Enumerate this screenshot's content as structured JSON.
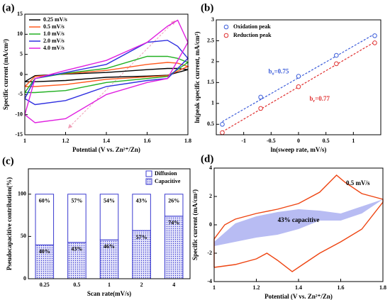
{
  "chart_data": [
    {
      "type": "line",
      "panel_label": "(a)",
      "xlabel": "Potential (V vs. Zn²⁺/Zn)",
      "ylabel": "Specific current (mA/cm²)",
      "xlim": [
        1,
        1.8
      ],
      "xticks": [
        1,
        1.2,
        1.4,
        1.6,
        1.8
      ],
      "ylim": [
        -15,
        15
      ],
      "yticks": [
        -15,
        -10,
        -5,
        0,
        5,
        10,
        15
      ],
      "x": [
        1,
        1.05,
        1.2,
        1.4,
        1.6,
        1.7,
        1.75,
        1.8,
        1.7,
        1.6,
        1.4,
        1.2,
        1.05,
        1
      ],
      "series": [
        {
          "name": "0.25 mV/s",
          "color": "#000000",
          "values": [
            -1.8,
            -0.3,
            0.1,
            0.5,
            1.2,
            1.5,
            1.5,
            1.2,
            -0.2,
            -0.4,
            -0.7,
            -1.5,
            -1.8,
            -1.8
          ]
        },
        {
          "name": "0.5 mV/s",
          "color": "#ff5a1f",
          "values": [
            -3,
            -0.5,
            0.2,
            1,
            2.5,
            3,
            2.8,
            2,
            -0.3,
            -0.6,
            -1.2,
            -2.5,
            -3,
            -3
          ]
        },
        {
          "name": "1.0 mV/s",
          "color": "#22b022",
          "values": [
            -4.5,
            -1,
            0.3,
            1.5,
            4.5,
            4.5,
            4,
            3,
            -0.5,
            -1,
            -2,
            -4,
            -4.5,
            -4.5
          ]
        },
        {
          "name": "2.0 mV/s",
          "color": "#3030e0",
          "values": [
            -6,
            -1,
            0.5,
            2.5,
            8,
            8.5,
            7,
            4,
            -1,
            -1.5,
            -3,
            -6.5,
            -7.5,
            -6
          ]
        },
        {
          "name": "4.0 mV/s",
          "color": "#e020e0",
          "values": [
            -10,
            -1,
            1,
            3.5,
            8,
            12,
            13.5,
            8,
            -1,
            -2,
            -5,
            -11,
            -12,
            -10
          ]
        }
      ]
    },
    {
      "type": "scatter",
      "panel_label": "(b)",
      "xlabel": "ln(sweep rate, mV/s)",
      "ylabel": "ln(peak specific current, mA/cm²)",
      "xlim": [
        -1.5,
        1.5
      ],
      "xticks": [
        -1,
        -0.5,
        0,
        0.5,
        1
      ],
      "ylim": [
        0.25,
        3
      ],
      "yticks": [
        0.5,
        1,
        1.5,
        2,
        2.5,
        3
      ],
      "series": [
        {
          "name": "Oxidation peak",
          "color": "#3a5bd9",
          "x": [
            -1.39,
            -0.69,
            0,
            0.69,
            1.39
          ],
          "values": [
            0.5,
            1.15,
            1.65,
            2.15,
            2.62
          ]
        },
        {
          "name": "Reduction peak",
          "color": "#e03030",
          "x": [
            -1.39,
            -0.69,
            0,
            0.69,
            1.39
          ],
          "values": [
            0.3,
            0.88,
            1.4,
            1.95,
            2.45
          ]
        }
      ],
      "annotations": [
        {
          "base": "b",
          "sub": "o",
          "rest": "=0.75",
          "color": "#3a5bd9"
        },
        {
          "base": "b",
          "sub": "r",
          "rest": "=0.77",
          "color": "#e03030"
        }
      ]
    },
    {
      "type": "bar",
      "panel_label": "(c)",
      "xlabel": "Scan rate(mV/s)",
      "ylabel": "Pseudocapacitive contribution(%)",
      "categories": [
        "0.25",
        "0.5",
        "1",
        "2",
        "4"
      ],
      "ylim": [
        0,
        130
      ],
      "yticks": [
        0,
        50,
        100
      ],
      "color": "#3b3bd0",
      "series": [
        {
          "name": "Capacitive",
          "values": [
            40,
            43,
            46,
            57,
            74
          ],
          "value_labels": [
            "40%",
            "43%",
            "46%",
            "57%",
            "74%"
          ]
        },
        {
          "name": "Diffusion",
          "values": [
            60,
            57,
            54,
            43,
            26
          ],
          "value_labels": [
            "60%",
            "57%",
            "54%",
            "43%",
            "26%"
          ]
        }
      ]
    },
    {
      "type": "line",
      "panel_label": "(d)",
      "xlabel": "Potential (V vs. Zn²⁺/Zn)",
      "ylabel": "Specific current (mA/cm²)",
      "xlim": [
        1,
        1.8
      ],
      "xticks": [
        1,
        1.2,
        1.4,
        1.6,
        1.8
      ],
      "ylim": [
        -4,
        4
      ],
      "yticks": [
        -4,
        -2,
        0,
        2,
        4
      ],
      "series": [
        {
          "color": "#9aa0ee",
          "fill": true,
          "x": [
            1,
            1.1,
            1.2,
            1.3,
            1.4,
            1.5,
            1.6,
            1.7,
            1.8,
            1.7,
            1.6,
            1.5,
            1.4,
            1.3,
            1.2,
            1.1,
            1
          ],
          "values": [
            -1.2,
            0.1,
            0.6,
            0.9,
            1.1,
            1.0,
            0.8,
            1.3,
            1.8,
            0.8,
            0.3,
            0.3,
            -0.3,
            -0.7,
            -0.9,
            -1.2,
            -1.5
          ]
        },
        {
          "color": "#ee4411",
          "x": [
            1,
            1,
            1.05,
            1.1,
            1.2,
            1.3,
            1.4,
            1.5,
            1.58,
            1.62,
            1.7,
            1.8,
            1.8,
            1.7,
            1.6,
            1.5,
            1.42,
            1.37,
            1.3,
            1.25,
            1.2,
            1.1,
            1
          ],
          "values": [
            -3,
            -1,
            0,
            0.4,
            0.8,
            1.1,
            1.5,
            2.3,
            3.5,
            3.0,
            2.2,
            1.8,
            1.6,
            -0.3,
            -1.2,
            -2,
            -2.8,
            -3.3,
            -2.5,
            -2,
            -2.4,
            -2.8,
            -3
          ]
        }
      ],
      "annotations": [
        "0.5 mV/s",
        "43% capacitive"
      ]
    }
  ]
}
